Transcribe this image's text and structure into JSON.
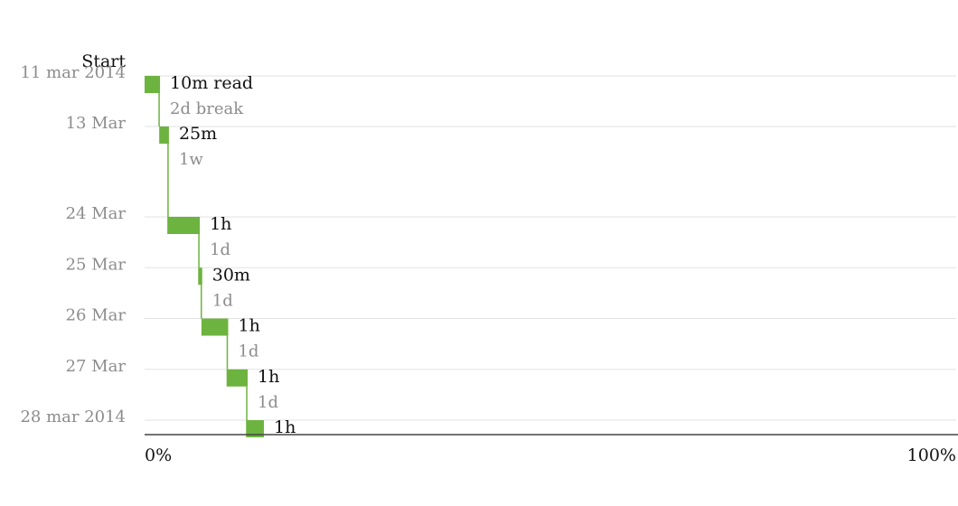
{
  "chart_data": {
    "type": "bar",
    "start_label": "Start",
    "accent_color": "#6db33f",
    "x_axis": {
      "range": [
        0,
        100
      ],
      "tick_labels": [
        "0%",
        "100%"
      ]
    },
    "date_labels": [
      {
        "date": "2014-03-11",
        "label": "11 mar 2014"
      },
      {
        "date": "2014-03-13",
        "label": "13 Mar"
      },
      {
        "date": "2014-03-24",
        "label": "24 Mar"
      },
      {
        "date": "2014-03-25",
        "label": "25 Mar"
      },
      {
        "date": "2014-03-26",
        "label": "26 Mar"
      },
      {
        "date": "2014-03-27",
        "label": "27 Mar"
      },
      {
        "date": "2014-03-28",
        "label": "28 mar 2014"
      }
    ],
    "sessions": [
      {
        "date": "2014-03-11",
        "label": "10m read",
        "start_pct": 0.0,
        "end_pct": 1.9
      },
      {
        "date": "2014-03-13",
        "label": "25m",
        "start_pct": 1.8,
        "end_pct": 3.0
      },
      {
        "date": "2014-03-24",
        "label": "1h",
        "start_pct": 2.8,
        "end_pct": 6.8
      },
      {
        "date": "2014-03-25",
        "label": "30m",
        "start_pct": 6.6,
        "end_pct": 7.1
      },
      {
        "date": "2014-03-26",
        "label": "1h",
        "start_pct": 7.0,
        "end_pct": 10.3
      },
      {
        "date": "2014-03-27",
        "label": "1h",
        "start_pct": 10.1,
        "end_pct": 12.7
      },
      {
        "date": "2014-03-28",
        "label": "1h",
        "start_pct": 12.5,
        "end_pct": 14.7
      }
    ],
    "breaks": [
      {
        "label": "2d break"
      },
      {
        "label": "1w"
      },
      {
        "label": "1d"
      },
      {
        "label": "1d"
      },
      {
        "label": "1d"
      },
      {
        "label": "1d"
      }
    ]
  }
}
